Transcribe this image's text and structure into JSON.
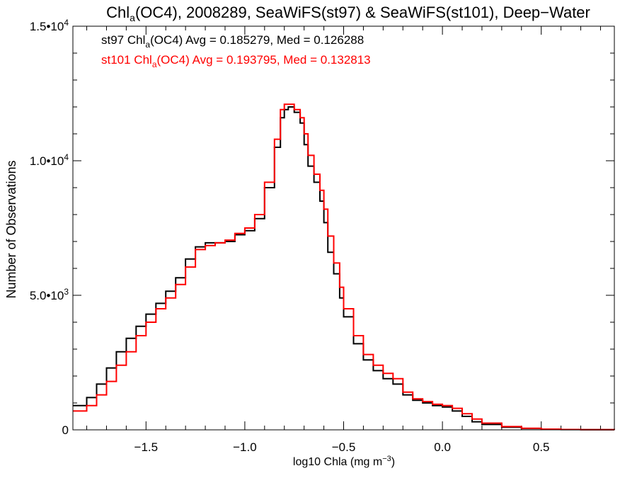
{
  "chart_data": {
    "type": "line",
    "title": {
      "prefix": "Chl",
      "sub": "a",
      "rest": "(OC4), 2008289, SeaWiFS(st97) & SeaWiFS(st101), Deep−Water"
    },
    "xlabel": {
      "main": "log10 Chla (mg m",
      "sup": "−3",
      "close": ")"
    },
    "ylabel": "Number of Observations",
    "xlim": [
      -1.87,
      0.87
    ],
    "ylim": [
      0,
      15000
    ],
    "x_ticks": [
      {
        "value": -1.5,
        "label": "−1.5"
      },
      {
        "value": -1.0,
        "label": "−1.0"
      },
      {
        "value": -0.5,
        "label": "−0.5"
      },
      {
        "value": 0.0,
        "label": "0.0"
      },
      {
        "value": 0.5,
        "label": "0.5"
      }
    ],
    "y_ticks": [
      {
        "value": 0,
        "mantissa": "0",
        "exp": ""
      },
      {
        "value": 5000,
        "mantissa": "5.0•10",
        "exp": "3"
      },
      {
        "value": 10000,
        "mantissa": "1.0•10",
        "exp": "4"
      },
      {
        "value": 15000,
        "mantissa": "1.5•10",
        "exp": "4"
      }
    ],
    "legend": [
      {
        "prefix": "st97 Chl",
        "sub": "a",
        "rest": "(OC4) Avg = 0.185279, Med = 0.126288",
        "color": "#000000"
      },
      {
        "prefix": "st101 Chl",
        "sub": "a",
        "rest": "(OC4) Avg = 0.193795, Med = 0.132813",
        "color": "#ff0000"
      }
    ],
    "legend_placement": "top-left",
    "series": [
      {
        "color": "#000000",
        "points": [
          [
            -1.87,
            900
          ],
          [
            -1.8,
            1200
          ],
          [
            -1.75,
            1700
          ],
          [
            -1.7,
            2300
          ],
          [
            -1.65,
            2900
          ],
          [
            -1.6,
            3400
          ],
          [
            -1.55,
            3850
          ],
          [
            -1.5,
            4300
          ],
          [
            -1.45,
            4700
          ],
          [
            -1.4,
            5150
          ],
          [
            -1.35,
            5650
          ],
          [
            -1.3,
            6350
          ],
          [
            -1.25,
            6800
          ],
          [
            -1.2,
            6950
          ],
          [
            -1.15,
            6950
          ],
          [
            -1.1,
            7000
          ],
          [
            -1.05,
            7250
          ],
          [
            -1.0,
            7400
          ],
          [
            -0.95,
            7850
          ],
          [
            -0.9,
            9000
          ],
          [
            -0.85,
            10500
          ],
          [
            -0.82,
            11600
          ],
          [
            -0.8,
            11900
          ],
          [
            -0.78,
            12000
          ],
          [
            -0.75,
            11800
          ],
          [
            -0.72,
            11400
          ],
          [
            -0.7,
            10600
          ],
          [
            -0.68,
            9800
          ],
          [
            -0.65,
            9200
          ],
          [
            -0.62,
            8500
          ],
          [
            -0.6,
            7700
          ],
          [
            -0.58,
            6600
          ],
          [
            -0.55,
            5800
          ],
          [
            -0.52,
            4900
          ],
          [
            -0.5,
            4200
          ],
          [
            -0.45,
            3200
          ],
          [
            -0.4,
            2600
          ],
          [
            -0.35,
            2200
          ],
          [
            -0.3,
            1900
          ],
          [
            -0.25,
            1700
          ],
          [
            -0.2,
            1300
          ],
          [
            -0.15,
            1100
          ],
          [
            -0.1,
            1000
          ],
          [
            -0.05,
            900
          ],
          [
            0.0,
            850
          ],
          [
            0.05,
            700
          ],
          [
            0.1,
            500
          ],
          [
            0.15,
            300
          ],
          [
            0.2,
            200
          ],
          [
            0.3,
            100
          ],
          [
            0.4,
            50
          ],
          [
            0.5,
            20
          ],
          [
            0.6,
            10
          ],
          [
            0.7,
            5
          ],
          [
            0.87,
            0
          ]
        ]
      },
      {
        "color": "#ff0000",
        "points": [
          [
            -1.87,
            700
          ],
          [
            -1.8,
            900
          ],
          [
            -1.75,
            1300
          ],
          [
            -1.7,
            1800
          ],
          [
            -1.65,
            2400
          ],
          [
            -1.6,
            2900
          ],
          [
            -1.55,
            3500
          ],
          [
            -1.5,
            4000
          ],
          [
            -1.45,
            4500
          ],
          [
            -1.4,
            4900
          ],
          [
            -1.35,
            5400
          ],
          [
            -1.3,
            6050
          ],
          [
            -1.25,
            6700
          ],
          [
            -1.2,
            6850
          ],
          [
            -1.15,
            6950
          ],
          [
            -1.1,
            7050
          ],
          [
            -1.05,
            7300
          ],
          [
            -1.0,
            7500
          ],
          [
            -0.95,
            8000
          ],
          [
            -0.9,
            9200
          ],
          [
            -0.85,
            10800
          ],
          [
            -0.82,
            11900
          ],
          [
            -0.8,
            12100
          ],
          [
            -0.78,
            12100
          ],
          [
            -0.75,
            11900
          ],
          [
            -0.72,
            11600
          ],
          [
            -0.7,
            11000
          ],
          [
            -0.68,
            10200
          ],
          [
            -0.65,
            9500
          ],
          [
            -0.62,
            8900
          ],
          [
            -0.6,
            8200
          ],
          [
            -0.58,
            7200
          ],
          [
            -0.55,
            6200
          ],
          [
            -0.52,
            5300
          ],
          [
            -0.5,
            4500
          ],
          [
            -0.45,
            3500
          ],
          [
            -0.4,
            2800
          ],
          [
            -0.35,
            2400
          ],
          [
            -0.3,
            2100
          ],
          [
            -0.25,
            1900
          ],
          [
            -0.2,
            1400
          ],
          [
            -0.15,
            1150
          ],
          [
            -0.1,
            1050
          ],
          [
            -0.05,
            950
          ],
          [
            0.0,
            900
          ],
          [
            0.05,
            800
          ],
          [
            0.1,
            600
          ],
          [
            0.15,
            400
          ],
          [
            0.2,
            250
          ],
          [
            0.3,
            120
          ],
          [
            0.4,
            60
          ],
          [
            0.5,
            25
          ],
          [
            0.6,
            12
          ],
          [
            0.7,
            5
          ],
          [
            0.87,
            0
          ]
        ]
      }
    ]
  }
}
